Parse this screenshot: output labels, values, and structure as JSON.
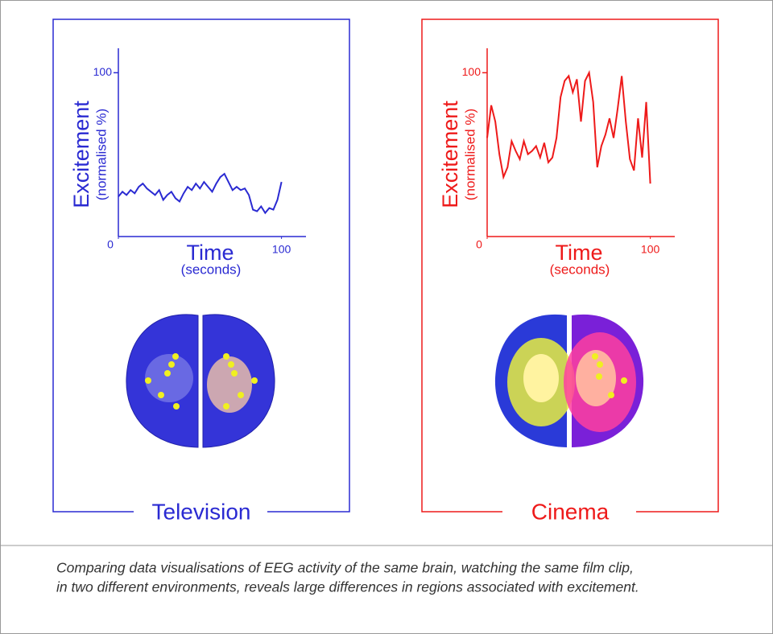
{
  "chart_data": [
    {
      "type": "line",
      "title": "Television",
      "y_label": "Excitement",
      "y_sublabel": "(normalised %)",
      "x_label": "Time",
      "x_sublabel": "(seconds)",
      "xlim": [
        0,
        115
      ],
      "ylim": [
        0,
        115
      ],
      "xticks": [
        0,
        100
      ],
      "yticks": [
        100
      ],
      "x": [
        0,
        2.5,
        5,
        7.5,
        10,
        12.5,
        15,
        17.5,
        20,
        22.5,
        25,
        27.5,
        30,
        32.5,
        35,
        37.5,
        40,
        42.5,
        45,
        47.5,
        50,
        52.5,
        55,
        57.5,
        60,
        62.5,
        65,
        67.5,
        70,
        72.5,
        75,
        77.5,
        80,
        82.5,
        85,
        87.5,
        90,
        92.5,
        95,
        97.5,
        100
      ],
      "series": [
        {
          "color": "#2a2ad2",
          "values": [
            24,
            27,
            25,
            28,
            26,
            30,
            32,
            29,
            27,
            25,
            28,
            22,
            25,
            27,
            23,
            21,
            26,
            30,
            28,
            32,
            29,
            33,
            30,
            27,
            32,
            36,
            38,
            33,
            28,
            30,
            28,
            29,
            25,
            16,
            15,
            18,
            14,
            17,
            16,
            22,
            33
          ]
        }
      ]
    },
    {
      "type": "line",
      "title": "Cinema",
      "y_label": "Excitement",
      "y_sublabel": "(normalised %)",
      "x_label": "Time",
      "x_sublabel": "(seconds)",
      "xlim": [
        0,
        115
      ],
      "ylim": [
        0,
        115
      ],
      "xticks": [
        0,
        100
      ],
      "yticks": [
        100
      ],
      "x": [
        0,
        2.5,
        5,
        7.5,
        10,
        12.5,
        15,
        17.5,
        20,
        22.5,
        25,
        27.5,
        30,
        32.5,
        35,
        37.5,
        40,
        42.5,
        45,
        47.5,
        50,
        52.5,
        55,
        57.5,
        60,
        62.5,
        65,
        67.5,
        70,
        72.5,
        75,
        77.5,
        80,
        82.5,
        85,
        87.5,
        90,
        92.5,
        95,
        97.5,
        100
      ],
      "series": [
        {
          "color": "#ee1a1a",
          "values": [
            60,
            80,
            70,
            50,
            36,
            42,
            58,
            52,
            47,
            58,
            50,
            52,
            55,
            48,
            57,
            45,
            48,
            60,
            85,
            95,
            98,
            88,
            96,
            70,
            95,
            100,
            82,
            42,
            55,
            62,
            72,
            60,
            78,
            98,
            70,
            47,
            40,
            72,
            48,
            82,
            32
          ]
        }
      ]
    }
  ],
  "caption": [
    "Comparing data visualisations of EEG activity of the same brain, watching the same film clip,",
    "in two different environments, reveals large differences in regions associated with excitement."
  ]
}
